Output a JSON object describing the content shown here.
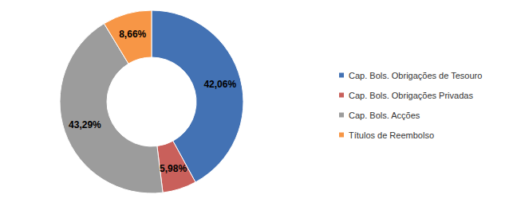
{
  "chart_data": {
    "type": "pie",
    "categories": [
      "Cap. Bols. Obrigações de Tesouro",
      "Cap. Bols. Obrigações Privadas",
      "Cap. Bols. Acções",
      "Títulos de Reembolso"
    ],
    "values": [
      42.06,
      5.98,
      43.29,
      8.66
    ],
    "value_labels": [
      "42,06%",
      "5,98%",
      "43,29%",
      "8,66%"
    ],
    "colors": [
      "#4372b4",
      "#c9605b",
      "#9c9c9c",
      "#f79646"
    ],
    "data_labels": true,
    "legend": "right"
  }
}
